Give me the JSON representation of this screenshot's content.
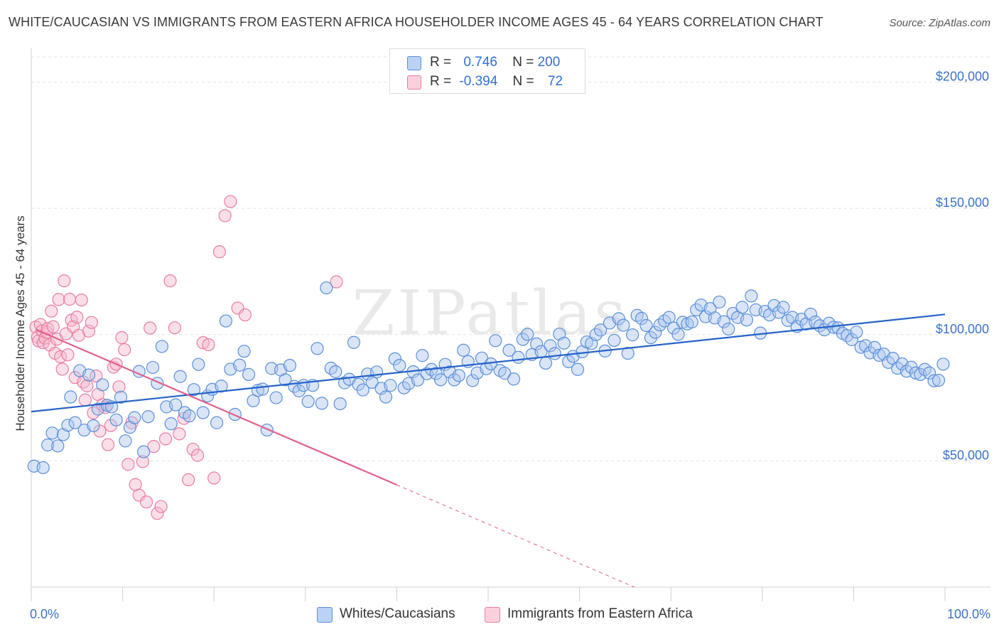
{
  "header": {
    "title": "WHITE/CAUCASIAN VS IMMIGRANTS FROM EASTERN AFRICA HOUSEHOLDER INCOME AGES 45 - 64 YEARS CORRELATION CHART",
    "source": "Source: ZipAtlas.com"
  },
  "legend": {
    "row1": {
      "r_label": "R =",
      "r_value": "0.746",
      "n_label": "N =",
      "n_value": "200"
    },
    "row2": {
      "r_label": "R =",
      "r_value": "-0.394",
      "n_label": "N =",
      "n_value": "72"
    }
  },
  "bottom_legend": {
    "series1": "Whites/Caucasians",
    "series2": "Immigrants from Eastern Africa"
  },
  "colors": {
    "blue_fill": "#aac6ee",
    "blue_stroke": "#5b8fd9",
    "blue_line": "#2563c9",
    "pink_fill": "#f7b8cc",
    "pink_stroke": "#e87ea0",
    "pink_line": "#e05f8c",
    "grid": "#e2e2e2",
    "tick_text": "#3b72c8"
  },
  "chart_data": {
    "type": "scatter",
    "title": "WHITE/CAUCASIAN VS IMMIGRANTS FROM EASTERN AFRICA HOUSEHOLDER INCOME AGES 45 - 64 YEARS CORRELATION CHART",
    "xlabel": "",
    "ylabel": "Householder Income Ages 45 - 64 years",
    "xlim": [
      0,
      100
    ],
    "ylim": [
      0,
      210000
    ],
    "x_tick_labels": [
      "0.0%",
      "100.0%"
    ],
    "y_ticks": [
      50000,
      100000,
      150000,
      200000
    ],
    "y_tick_labels": [
      "$50,000",
      "$100,000",
      "$150,000",
      "$200,000"
    ],
    "grid": true,
    "watermark": "ZIPatlas",
    "series": [
      {
        "name": "Whites/Caucasians",
        "r": 0.746,
        "n": 200,
        "trend": {
          "x": [
            0,
            100
          ],
          "y": [
            69500,
            108000
          ]
        },
        "points": [
          [
            0.3,
            47900
          ],
          [
            1.3,
            47300
          ],
          [
            1.8,
            56300
          ],
          [
            2.3,
            61000
          ],
          [
            2.9,
            55900
          ],
          [
            3.5,
            60400
          ],
          [
            4.0,
            64100
          ],
          [
            4.3,
            75300
          ],
          [
            4.8,
            65100
          ],
          [
            5.3,
            85700
          ],
          [
            5.8,
            62200
          ],
          [
            6.3,
            84000
          ],
          [
            6.8,
            63900
          ],
          [
            7.3,
            70500
          ],
          [
            7.8,
            80100
          ],
          [
            8.3,
            72000
          ],
          [
            8.8,
            71400
          ],
          [
            9.3,
            66200
          ],
          [
            9.8,
            75200
          ],
          [
            10.3,
            57900
          ],
          [
            10.8,
            63300
          ],
          [
            11.3,
            67100
          ],
          [
            11.8,
            85400
          ],
          [
            12.3,
            53600
          ],
          [
            12.8,
            67500
          ],
          [
            13.3,
            87000
          ],
          [
            13.8,
            80700
          ],
          [
            14.3,
            95300
          ],
          [
            14.8,
            71400
          ],
          [
            15.3,
            64700
          ],
          [
            15.8,
            72200
          ],
          [
            16.3,
            83400
          ],
          [
            16.8,
            69100
          ],
          [
            17.3,
            67800
          ],
          [
            17.8,
            78200
          ],
          [
            18.3,
            88200
          ],
          [
            18.8,
            69100
          ],
          [
            19.3,
            75700
          ],
          [
            19.8,
            78300
          ],
          [
            20.3,
            65100
          ],
          [
            20.8,
            79600
          ],
          [
            21.3,
            105400
          ],
          [
            21.8,
            86300
          ],
          [
            22.3,
            68400
          ],
          [
            22.8,
            87900
          ],
          [
            23.3,
            93400
          ],
          [
            23.8,
            84200
          ],
          [
            24.3,
            73800
          ],
          [
            24.8,
            77900
          ],
          [
            25.3,
            78400
          ],
          [
            25.8,
            62200
          ],
          [
            26.3,
            86600
          ],
          [
            26.8,
            75000
          ],
          [
            27.3,
            86000
          ],
          [
            27.8,
            82100
          ],
          [
            28.3,
            87800
          ],
          [
            28.8,
            79500
          ],
          [
            29.3,
            77700
          ],
          [
            29.8,
            79900
          ],
          [
            30.3,
            73500
          ],
          [
            30.8,
            79900
          ],
          [
            31.3,
            94500
          ],
          [
            31.8,
            72800
          ],
          [
            32.3,
            118500
          ],
          [
            32.8,
            86700
          ],
          [
            33.3,
            85300
          ],
          [
            33.8,
            72600
          ],
          [
            34.3,
            80900
          ],
          [
            34.8,
            82300
          ],
          [
            35.3,
            96900
          ],
          [
            35.8,
            80300
          ],
          [
            36.3,
            78100
          ],
          [
            36.8,
            84400
          ],
          [
            37.3,
            81100
          ],
          [
            37.8,
            85200
          ],
          [
            38.3,
            78700
          ],
          [
            38.8,
            75300
          ],
          [
            39.3,
            79900
          ],
          [
            39.8,
            90400
          ],
          [
            40.3,
            87800
          ],
          [
            40.8,
            78900
          ],
          [
            41.3,
            80600
          ],
          [
            41.8,
            85300
          ],
          [
            42.3,
            82000
          ],
          [
            42.8,
            91700
          ],
          [
            43.3,
            84500
          ],
          [
            43.8,
            86200
          ],
          [
            44.3,
            84600
          ],
          [
            44.8,
            82100
          ],
          [
            45.3,
            88200
          ],
          [
            45.8,
            85200
          ],
          [
            46.3,
            82100
          ],
          [
            46.8,
            83800
          ],
          [
            47.3,
            93800
          ],
          [
            47.8,
            89300
          ],
          [
            48.3,
            81800
          ],
          [
            48.8,
            84800
          ],
          [
            49.3,
            90700
          ],
          [
            49.8,
            86500
          ],
          [
            50.3,
            88400
          ],
          [
            50.8,
            97600
          ],
          [
            51.3,
            85800
          ],
          [
            51.8,
            84700
          ],
          [
            52.3,
            93800
          ],
          [
            52.8,
            82400
          ],
          [
            53.3,
            91000
          ],
          [
            53.8,
            98100
          ],
          [
            54.3,
            100100
          ],
          [
            54.8,
            92100
          ],
          [
            55.3,
            96300
          ],
          [
            55.8,
            93300
          ],
          [
            56.3,
            88700
          ],
          [
            56.8,
            95600
          ],
          [
            57.3,
            92500
          ],
          [
            57.8,
            100200
          ],
          [
            58.3,
            96600
          ],
          [
            58.8,
            89300
          ],
          [
            59.3,
            91400
          ],
          [
            59.8,
            86200
          ],
          [
            60.3,
            93200
          ],
          [
            60.8,
            97100
          ],
          [
            61.3,
            96500
          ],
          [
            61.8,
            100000
          ],
          [
            62.3,
            101800
          ],
          [
            62.8,
            93500
          ],
          [
            63.3,
            104600
          ],
          [
            63.8,
            97700
          ],
          [
            64.3,
            106300
          ],
          [
            64.8,
            103700
          ],
          [
            65.3,
            92600
          ],
          [
            65.8,
            99900
          ],
          [
            66.3,
            107600
          ],
          [
            66.8,
            106400
          ],
          [
            67.3,
            103600
          ],
          [
            67.8,
            98800
          ],
          [
            68.3,
            100900
          ],
          [
            68.8,
            103800
          ],
          [
            69.3,
            105400
          ],
          [
            69.8,
            106800
          ],
          [
            70.3,
            102600
          ],
          [
            70.8,
            100100
          ],
          [
            71.3,
            104900
          ],
          [
            71.8,
            104200
          ],
          [
            72.3,
            105000
          ],
          [
            72.8,
            109800
          ],
          [
            73.3,
            111700
          ],
          [
            73.8,
            107100
          ],
          [
            74.3,
            110300
          ],
          [
            74.8,
            106600
          ],
          [
            75.3,
            112900
          ],
          [
            75.8,
            105100
          ],
          [
            76.3,
            102200
          ],
          [
            76.8,
            108400
          ],
          [
            77.3,
            106800
          ],
          [
            77.8,
            110800
          ],
          [
            78.3,
            105800
          ],
          [
            78.8,
            115300
          ],
          [
            79.3,
            109800
          ],
          [
            79.8,
            100600
          ],
          [
            80.3,
            109200
          ],
          [
            80.8,
            107800
          ],
          [
            81.3,
            111500
          ],
          [
            81.8,
            108800
          ],
          [
            82.3,
            110800
          ],
          [
            82.8,
            105600
          ],
          [
            83.3,
            106800
          ],
          [
            83.8,
            103200
          ],
          [
            84.3,
            106100
          ],
          [
            84.8,
            104200
          ],
          [
            85.3,
            108100
          ],
          [
            85.8,
            105000
          ],
          [
            86.3,
            103500
          ],
          [
            86.8,
            101900
          ],
          [
            87.3,
            104500
          ],
          [
            87.8,
            102900
          ],
          [
            88.3,
            102700
          ],
          [
            88.8,
            100500
          ],
          [
            89.3,
            99600
          ],
          [
            89.8,
            98000
          ],
          [
            90.3,
            101000
          ],
          [
            90.8,
            95000
          ],
          [
            91.3,
            95600
          ],
          [
            91.8,
            92800
          ],
          [
            92.3,
            94900
          ],
          [
            92.8,
            91800
          ],
          [
            93.3,
            92300
          ],
          [
            93.8,
            89000
          ],
          [
            94.3,
            90600
          ],
          [
            94.8,
            86700
          ],
          [
            95.3,
            88400
          ],
          [
            95.8,
            85500
          ],
          [
            96.3,
            87100
          ],
          [
            96.8,
            84800
          ],
          [
            97.3,
            84200
          ],
          [
            97.8,
            86200
          ],
          [
            98.3,
            84800
          ],
          [
            98.8,
            81700
          ],
          [
            99.3,
            81900
          ],
          [
            99.8,
            88300
          ]
        ]
      },
      {
        "name": "Immigrants from Eastern Africa",
        "r": -0.394,
        "n": 72,
        "trend": {
          "x": [
            0.5,
            40
          ],
          "y": [
            102000,
            40500
          ],
          "dashed_to": {
            "x": 66,
            "y": 0
          }
        },
        "points": [
          [
            0.5,
            103000
          ],
          [
            0.7,
            99000
          ],
          [
            0.8,
            97500
          ],
          [
            1.0,
            104000
          ],
          [
            1.2,
            101500
          ],
          [
            1.3,
            96800
          ],
          [
            1.5,
            98600
          ],
          [
            1.7,
            100900
          ],
          [
            1.8,
            102400
          ],
          [
            2.0,
            95900
          ],
          [
            2.2,
            109300
          ],
          [
            2.4,
            103100
          ],
          [
            2.6,
            92600
          ],
          [
            2.8,
            98200
          ],
          [
            3.0,
            113900
          ],
          [
            3.2,
            91200
          ],
          [
            3.4,
            86300
          ],
          [
            3.6,
            121300
          ],
          [
            3.8,
            100300
          ],
          [
            4.0,
            92000
          ],
          [
            4.2,
            114000
          ],
          [
            4.4,
            105700
          ],
          [
            4.6,
            103100
          ],
          [
            4.8,
            83000
          ],
          [
            5.0,
            106900
          ],
          [
            5.2,
            99700
          ],
          [
            5.5,
            113700
          ],
          [
            5.7,
            81200
          ],
          [
            5.9,
            74100
          ],
          [
            6.1,
            79700
          ],
          [
            6.3,
            101400
          ],
          [
            6.6,
            104800
          ],
          [
            6.8,
            69000
          ],
          [
            7.1,
            83600
          ],
          [
            7.3,
            76300
          ],
          [
            7.5,
            61800
          ],
          [
            7.8,
            72300
          ],
          [
            8.1,
            71100
          ],
          [
            8.4,
            56400
          ],
          [
            8.7,
            64000
          ],
          [
            9.0,
            87100
          ],
          [
            9.3,
            88300
          ],
          [
            9.6,
            79300
          ],
          [
            9.9,
            98800
          ],
          [
            10.2,
            94000
          ],
          [
            10.6,
            48600
          ],
          [
            11.0,
            65100
          ],
          [
            11.4,
            40600
          ],
          [
            11.8,
            36400
          ],
          [
            12.2,
            49700
          ],
          [
            12.6,
            33700
          ],
          [
            13.0,
            102600
          ],
          [
            13.4,
            55700
          ],
          [
            13.8,
            29200
          ],
          [
            14.2,
            31900
          ],
          [
            14.7,
            58700
          ],
          [
            15.2,
            121300
          ],
          [
            15.7,
            102700
          ],
          [
            16.2,
            60700
          ],
          [
            16.7,
            66800
          ],
          [
            17.2,
            42500
          ],
          [
            17.7,
            54600
          ],
          [
            18.2,
            52200
          ],
          [
            18.8,
            96800
          ],
          [
            19.4,
            96000
          ],
          [
            20.0,
            43200
          ],
          [
            20.6,
            132800
          ],
          [
            21.2,
            147100
          ],
          [
            21.8,
            152700
          ],
          [
            22.6,
            110500
          ],
          [
            23.4,
            107800
          ],
          [
            33.4,
            120900
          ]
        ]
      }
    ]
  }
}
